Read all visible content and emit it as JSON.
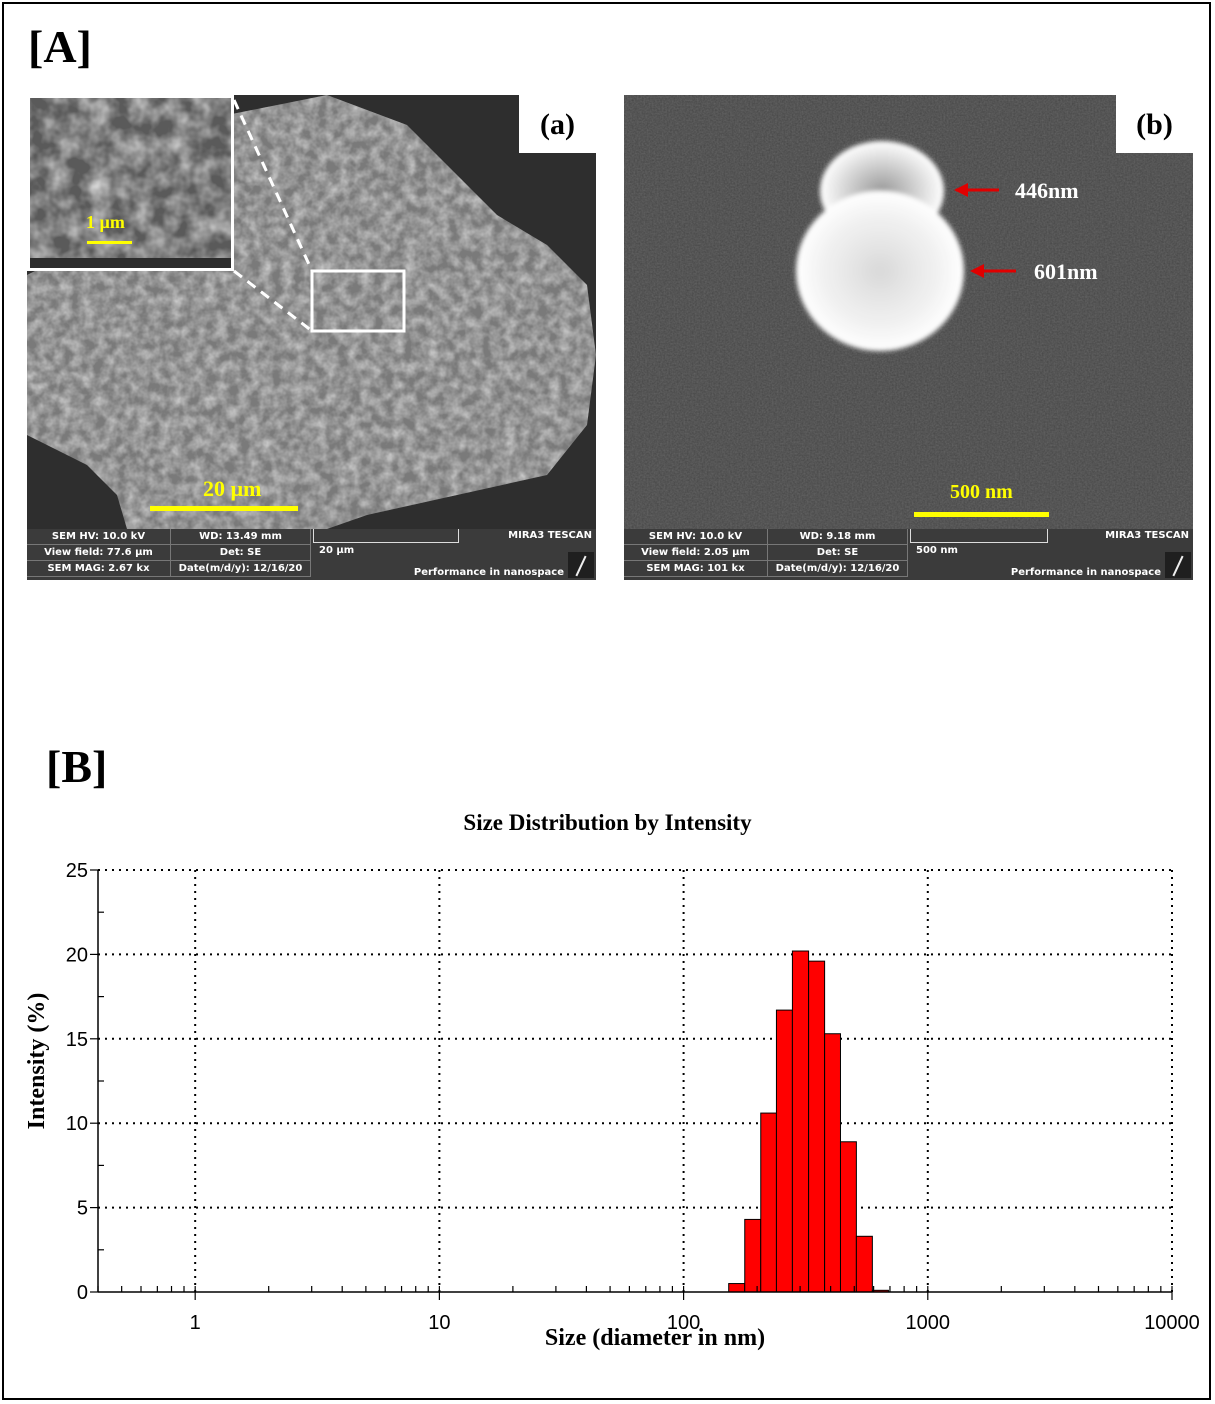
{
  "labels": {
    "A": "[A]",
    "B": "[B]"
  },
  "panel_a": {
    "letter": "(a)",
    "scalebar": "20 µm",
    "inset_scalebar": "1 µm",
    "meta": {
      "hv": "SEM HV: 10.0 kV",
      "wd": "WD: 13.49 mm",
      "view": "View field: 77.6 µm",
      "det": "Det: SE",
      "mag": "SEM MAG: 2.67 kx",
      "date": "Date(m/d/y): 12/16/20",
      "scale": "20 µm",
      "brand": "MIRA3 TESCAN",
      "slogan": "Performance in nanospace"
    }
  },
  "panel_b": {
    "letter": "(b)",
    "scalebar": "500 nm",
    "annotations": [
      "446nm",
      "601nm"
    ],
    "meta": {
      "hv": "SEM HV: 10.0 kV",
      "wd": "WD: 9.18 mm",
      "view": "View field: 2.05 µm",
      "det": "Det: SE",
      "mag": "SEM MAG: 101 kx",
      "date": "Date(m/d/y): 12/16/20",
      "scale": "500 nm",
      "brand": "MIRA3 TESCAN",
      "slogan": "Performance in nanospace"
    }
  },
  "chart_data": {
    "type": "bar",
    "title": "Size Distribution by Intensity",
    "xlabel": "Size (diameter in nm)",
    "ylabel": "Intensity (%)",
    "xscale": "log",
    "xlim": [
      0.4,
      10000
    ],
    "ylim": [
      0,
      25
    ],
    "xticks": [
      1,
      10,
      100,
      1000,
      10000
    ],
    "xtick_labels": [
      "1",
      "10",
      "100",
      "1000",
      "10000"
    ],
    "yticks": [
      0,
      5,
      10,
      15,
      20,
      25
    ],
    "ytick_labels": [
      "0",
      "5",
      "10",
      "15",
      "20",
      "25"
    ],
    "grid": true,
    "bar_color": "#ff0000",
    "bins": [
      {
        "from": 153,
        "to": 178,
        "value": 0.5
      },
      {
        "from": 178,
        "to": 207,
        "value": 4.3
      },
      {
        "from": 207,
        "to": 240,
        "value": 10.6
      },
      {
        "from": 240,
        "to": 279,
        "value": 16.7
      },
      {
        "from": 279,
        "to": 325,
        "value": 20.2
      },
      {
        "from": 325,
        "to": 378,
        "value": 19.6
      },
      {
        "from": 378,
        "to": 439,
        "value": 15.3
      },
      {
        "from": 439,
        "to": 510,
        "value": 8.9
      },
      {
        "from": 510,
        "to": 593,
        "value": 3.3
      },
      {
        "from": 593,
        "to": 690,
        "value": 0.1
      }
    ]
  }
}
